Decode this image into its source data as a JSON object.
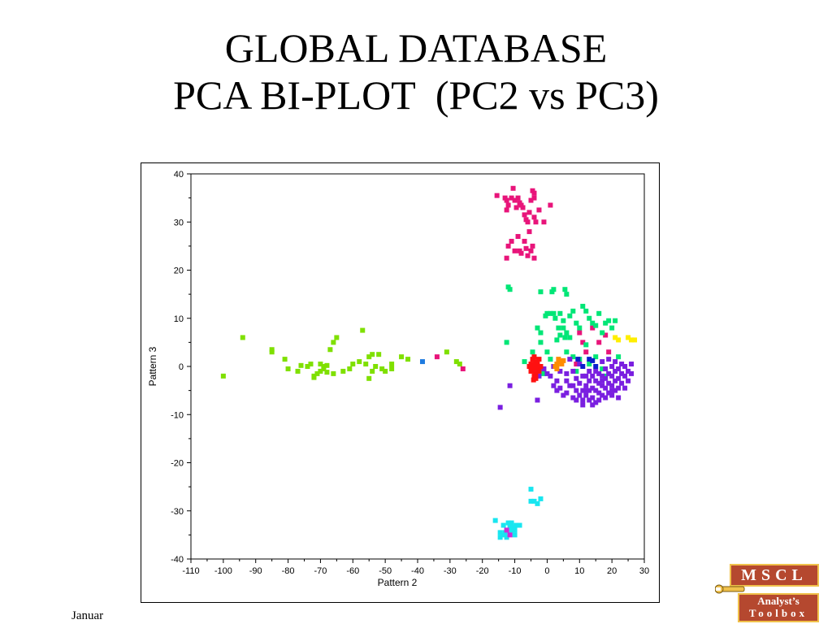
{
  "slide": {
    "title_line1": "GLOBAL DATABASE",
    "title_line2": "PCA BI-PLOT  (PC2 vs PC3)",
    "footer_date": "Januar"
  },
  "logo": {
    "top_text": "MSCL",
    "bottom_line1": "Analyst’s",
    "bottom_line2": "Toolbox",
    "colors": {
      "box": "#b5482f",
      "border": "#f0c14b",
      "text": "#ffffff"
    }
  },
  "chart_data": {
    "type": "scatter",
    "title": "",
    "xlabel": "Pattern 2",
    "ylabel": "Pattern 3",
    "xlim": [
      -110,
      30
    ],
    "ylim": [
      -40,
      40
    ],
    "x_ticks": [
      "-110",
      "-100",
      "-90",
      "-80",
      "-70",
      "-60",
      "-50",
      "-40",
      "-30",
      "-20",
      "-10",
      "0",
      "10",
      "20",
      "30"
    ],
    "y_ticks": [
      "40",
      "30",
      "20",
      "10",
      "0",
      "-10",
      "-20",
      "-30",
      "-40"
    ],
    "grid": false,
    "legend": "none",
    "series": [
      {
        "color": "#7fe000",
        "points": [
          [
            -100,
            -2
          ],
          [
            -94,
            6
          ],
          [
            -85,
            3
          ],
          [
            -85,
            3.5
          ],
          [
            -81,
            1.5
          ],
          [
            -80,
            -0.5
          ],
          [
            -77,
            -1
          ],
          [
            -76,
            0.2
          ],
          [
            -74,
            0
          ],
          [
            -73,
            0.5
          ],
          [
            -72,
            -2
          ],
          [
            -71,
            -1.5
          ],
          [
            -70,
            -1
          ],
          [
            -69,
            -0.5
          ],
          [
            -69,
            0
          ],
          [
            -68,
            -1.2
          ],
          [
            -68,
            0.2
          ],
          [
            -67,
            3.5
          ],
          [
            -66,
            5
          ],
          [
            -66,
            -1.5
          ],
          [
            -65,
            6
          ],
          [
            -63,
            -1
          ],
          [
            -61,
            -0.5
          ],
          [
            -60,
            0.5
          ],
          [
            -58,
            1
          ],
          [
            -57,
            7.5
          ],
          [
            -56,
            0.5
          ],
          [
            -55,
            2
          ],
          [
            -54,
            2.5
          ],
          [
            -54,
            -1
          ],
          [
            -53,
            0
          ],
          [
            -52,
            2.5
          ],
          [
            -51,
            -0.5
          ],
          [
            -50,
            -1
          ],
          [
            -48,
            0.5
          ],
          [
            -48,
            -0.5
          ],
          [
            -45,
            2
          ],
          [
            -43,
            1.5
          ],
          [
            -31,
            3
          ],
          [
            -28,
            1
          ],
          [
            -27,
            0.5
          ],
          [
            -55,
            -2.5
          ],
          [
            -70,
            0.5
          ],
          [
            -72,
            -2.3
          ]
        ]
      },
      {
        "color": "#e8147a",
        "points": [
          [
            -15.5,
            35.5
          ],
          [
            -13,
            35
          ],
          [
            -12.5,
            34.5
          ],
          [
            -12,
            33.5
          ],
          [
            -11,
            35
          ],
          [
            -10.5,
            37
          ],
          [
            -10,
            34.5
          ],
          [
            -9.5,
            33
          ],
          [
            -9,
            35
          ],
          [
            -8.5,
            34
          ],
          [
            -8,
            33.5
          ],
          [
            -7.5,
            33
          ],
          [
            -7,
            31.5
          ],
          [
            -6.5,
            30.5
          ],
          [
            -6,
            30
          ],
          [
            -5.5,
            32
          ],
          [
            -5,
            34.5
          ],
          [
            -4.5,
            36.5
          ],
          [
            -4,
            35
          ],
          [
            -4,
            31
          ],
          [
            -3.5,
            30
          ],
          [
            -2.5,
            32.5
          ],
          [
            -1,
            30
          ],
          [
            1,
            33.5
          ],
          [
            -12.5,
            32.5
          ],
          [
            -9,
            27
          ],
          [
            -8.5,
            24
          ],
          [
            -8,
            23.5
          ],
          [
            -7,
            26
          ],
          [
            -6.5,
            24.5
          ],
          [
            -6,
            23
          ],
          [
            -5,
            24
          ],
          [
            -4.5,
            25
          ],
          [
            -4,
            22.5
          ],
          [
            -12,
            25
          ],
          [
            -12.5,
            22.5
          ],
          [
            -10,
            24
          ],
          [
            -5.5,
            28
          ],
          [
            -4,
            36
          ],
          [
            -11,
            26
          ],
          [
            -34,
            2
          ],
          [
            -26,
            -0.5
          ],
          [
            11,
            5
          ],
          [
            14,
            8
          ],
          [
            16,
            5
          ],
          [
            18,
            6.5
          ],
          [
            12,
            3
          ],
          [
            10,
            7
          ],
          [
            19,
            3
          ],
          [
            9,
            0.5
          ]
        ]
      },
      {
        "color": "#00e676",
        "points": [
          [
            -12,
            16.5
          ],
          [
            -11.5,
            16
          ],
          [
            -2,
            15.5
          ],
          [
            1.5,
            15.5
          ],
          [
            2,
            16
          ],
          [
            5.5,
            16
          ],
          [
            6,
            15
          ],
          [
            -0.5,
            10.5
          ],
          [
            0,
            11
          ],
          [
            1,
            11
          ],
          [
            2,
            11
          ],
          [
            2.5,
            10
          ],
          [
            3.5,
            8
          ],
          [
            4,
            6.5
          ],
          [
            5,
            8
          ],
          [
            5.5,
            6
          ],
          [
            6,
            7
          ],
          [
            7,
            6
          ],
          [
            8,
            11.5
          ],
          [
            9,
            9
          ],
          [
            10,
            8
          ],
          [
            11,
            12.5
          ],
          [
            12,
            11.5
          ],
          [
            13,
            10
          ],
          [
            14,
            9
          ],
          [
            15,
            8.5
          ],
          [
            16,
            11
          ],
          [
            17,
            7
          ],
          [
            18,
            9
          ],
          [
            19,
            9.5
          ],
          [
            20,
            8
          ],
          [
            21,
            9.5
          ],
          [
            -3,
            8
          ],
          [
            -2,
            7
          ],
          [
            -4.5,
            3
          ],
          [
            -2,
            5
          ],
          [
            0,
            3
          ],
          [
            1,
            1.5
          ],
          [
            3,
            5.5
          ],
          [
            6,
            3
          ],
          [
            8,
            2
          ],
          [
            10,
            1.5
          ],
          [
            13,
            0.5
          ],
          [
            15,
            2
          ],
          [
            17,
            -0.5
          ],
          [
            18,
            -2
          ],
          [
            -7,
            1
          ],
          [
            -1,
            -1.5
          ],
          [
            9,
            -1
          ],
          [
            12,
            4.5
          ],
          [
            22,
            2
          ],
          [
            -12.5,
            5
          ],
          [
            5,
            9.5
          ],
          [
            7,
            10.5
          ],
          [
            4,
            11
          ]
        ]
      },
      {
        "color": "#7a1fe0",
        "points": [
          [
            -14.5,
            -8.5
          ],
          [
            -11.5,
            -4
          ],
          [
            -3,
            -7
          ],
          [
            2,
            -4
          ],
          [
            3,
            -5
          ],
          [
            4,
            -4.5
          ],
          [
            5,
            -6
          ],
          [
            6,
            -3
          ],
          [
            6,
            -5.5
          ],
          [
            7,
            -4
          ],
          [
            8,
            -6.5
          ],
          [
            8,
            -4
          ],
          [
            9,
            -5
          ],
          [
            9,
            -2.5
          ],
          [
            10,
            -6
          ],
          [
            10,
            -3.5
          ],
          [
            11,
            -5
          ],
          [
            11,
            -7
          ],
          [
            12,
            -4
          ],
          [
            12,
            -2
          ],
          [
            12,
            -6
          ],
          [
            13,
            -5
          ],
          [
            13,
            -3
          ],
          [
            13,
            -7
          ],
          [
            14,
            -4.5
          ],
          [
            14,
            -2
          ],
          [
            14,
            -6.5
          ],
          [
            15,
            -5
          ],
          [
            15,
            -3
          ],
          [
            15,
            -1
          ],
          [
            16,
            -5.5
          ],
          [
            16,
            -3.5
          ],
          [
            16,
            -1.5
          ],
          [
            16,
            -7
          ],
          [
            17,
            -4
          ],
          [
            17,
            -2
          ],
          [
            17,
            -6
          ],
          [
            18,
            -4.5
          ],
          [
            18,
            -2.5
          ],
          [
            18,
            -0.5
          ],
          [
            18,
            -6.5
          ],
          [
            19,
            -3.5
          ],
          [
            19,
            -1.5
          ],
          [
            19,
            -5.5
          ],
          [
            20,
            -4
          ],
          [
            20,
            -2
          ],
          [
            20,
            0
          ],
          [
            20,
            -6
          ],
          [
            21,
            -3
          ],
          [
            21,
            -1
          ],
          [
            21,
            -5
          ],
          [
            22,
            -2.5
          ],
          [
            22,
            -0.5
          ],
          [
            22,
            -4.5
          ],
          [
            23,
            -1.5
          ],
          [
            23,
            0.5
          ],
          [
            23,
            -3.5
          ],
          [
            24,
            -2
          ],
          [
            24,
            0
          ],
          [
            25,
            -1
          ],
          [
            25,
            -3
          ],
          [
            26,
            -1.5
          ],
          [
            26,
            0.5
          ],
          [
            21,
            1
          ],
          [
            19,
            1.5
          ],
          [
            17,
            1
          ],
          [
            4,
            -1
          ],
          [
            3,
            -3
          ],
          [
            1,
            -2
          ],
          [
            0,
            -1.5
          ],
          [
            6,
            -1.5
          ],
          [
            8,
            -1
          ],
          [
            10,
            0.5
          ],
          [
            7,
            1.5
          ],
          [
            2,
            0
          ],
          [
            -1,
            -0.5
          ],
          [
            -2.5,
            -2
          ],
          [
            11,
            -2
          ],
          [
            13,
            -1
          ],
          [
            14,
            -8
          ],
          [
            15,
            -7.5
          ],
          [
            11,
            -8
          ],
          [
            9,
            -7
          ],
          [
            12,
            -5
          ],
          [
            17,
            -3
          ],
          [
            20,
            -5
          ],
          [
            22,
            -6.5
          ],
          [
            24,
            -4.5
          ]
        ]
      },
      {
        "color": "#ff1010",
        "points": [
          [
            -5,
            0.5
          ],
          [
            -5,
            -1
          ],
          [
            -4.5,
            1.5
          ],
          [
            -4.5,
            -0.5
          ],
          [
            -4,
            0
          ],
          [
            -4,
            2
          ],
          [
            -4,
            -2
          ],
          [
            -3.5,
            1
          ],
          [
            -3.5,
            -1.5
          ],
          [
            -3,
            0.5
          ],
          [
            -3,
            -0.5
          ],
          [
            -2.5,
            1.5
          ],
          [
            -2.5,
            -1
          ],
          [
            -2,
            0
          ],
          [
            -5.5,
            0
          ],
          [
            -3.5,
            -2.5
          ],
          [
            -4.2,
            -2.8
          ]
        ]
      },
      {
        "color": "#ff8c00",
        "points": [
          [
            3,
            0.5
          ],
          [
            3.5,
            1.5
          ],
          [
            4,
            1
          ],
          [
            2.5,
            0
          ],
          [
            4.5,
            0.5
          ],
          [
            3,
            -0.5
          ],
          [
            5,
            1.2
          ]
        ]
      },
      {
        "color": "#0a1ecc",
        "points": [
          [
            9.5,
            1.5
          ],
          [
            11,
            0
          ],
          [
            13,
            1.5
          ],
          [
            15,
            0
          ],
          [
            14,
            1.2
          ]
        ]
      },
      {
        "color": "#1e7be0",
        "points": [
          [
            -38.5,
            1
          ]
        ]
      },
      {
        "color": "#ffee00",
        "points": [
          [
            21,
            6
          ],
          [
            22,
            5.5
          ],
          [
            25,
            6
          ],
          [
            26,
            5.5
          ],
          [
            27,
            5.5
          ]
        ]
      },
      {
        "color": "#19e6f0",
        "points": [
          [
            -5,
            -25.5
          ],
          [
            -5,
            -28
          ],
          [
            -4,
            -28
          ],
          [
            -3,
            -28.5
          ],
          [
            -2,
            -27.5
          ],
          [
            -16,
            -32
          ],
          [
            -14.5,
            -34.5
          ],
          [
            -14.5,
            -35.5
          ],
          [
            -13.5,
            -33
          ],
          [
            -13,
            -34.5
          ],
          [
            -12.5,
            -35.5
          ],
          [
            -12,
            -32.5
          ],
          [
            -11.5,
            -33
          ],
          [
            -11,
            -34
          ],
          [
            -10.5,
            -33.5
          ],
          [
            -10,
            -35
          ],
          [
            -9.5,
            -33
          ],
          [
            -8.5,
            -33
          ],
          [
            -12.5,
            -34
          ],
          [
            -11,
            -32.5
          ],
          [
            -13.5,
            -35
          ],
          [
            -10,
            -34
          ]
        ]
      },
      {
        "color": "#cc2cd6",
        "points": [
          [
            -12.5,
            -34
          ],
          [
            -11.5,
            -35
          ]
        ]
      }
    ]
  }
}
